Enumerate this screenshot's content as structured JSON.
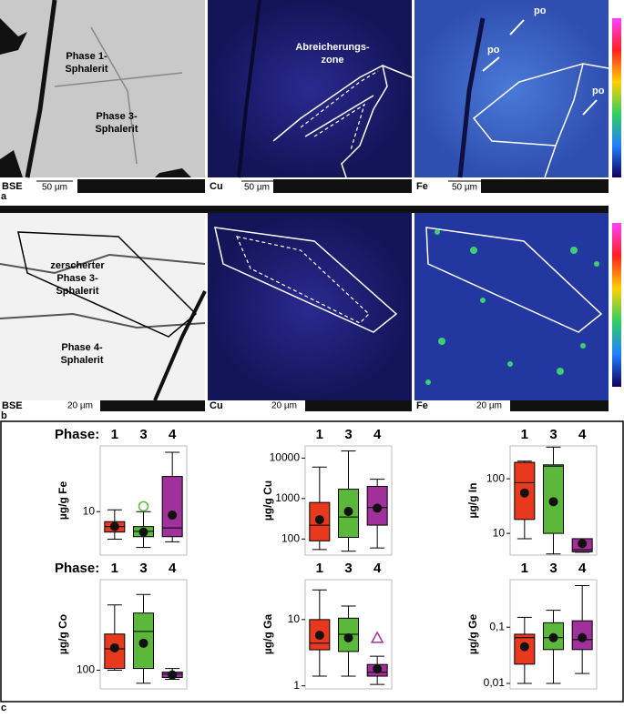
{
  "panels": [
    {
      "letter": "a",
      "images": [
        {
          "channel": "BSE",
          "scale_bar": "50 µm",
          "annotations": [
            "Phase 1-",
            "Sphalerit",
            "Phase 3-",
            "Sphalerit"
          ]
        },
        {
          "channel": "Cu",
          "scale_bar": "50 µm",
          "annotations": [
            "Abreicherungs-",
            "zone"
          ]
        },
        {
          "channel": "Fe",
          "scale_bar": "50 µm",
          "annotations": [
            "po",
            "po",
            "po"
          ]
        }
      ]
    },
    {
      "letter": "b",
      "images": [
        {
          "channel": "BSE",
          "scale_bar": "20 µm",
          "annotations": [
            "zerscherter",
            "Phase 3-",
            "Sphalerit",
            "Phase 4-",
            "Sphalerit"
          ]
        },
        {
          "channel": "Cu",
          "scale_bar": "20 µm"
        },
        {
          "channel": "Fe",
          "scale_bar": "20 µm"
        }
      ]
    },
    {
      "letter": "c"
    }
  ],
  "chart_data": [
    {
      "type": "box",
      "category_label": "Phase:",
      "ylabel": "µg/g Fe",
      "log_scale": true,
      "categories": [
        "1",
        "3",
        "4"
      ],
      "colors": [
        "#e8391e",
        "#5cb83a",
        "#a0309a"
      ],
      "ylim": [
        4,
        40
      ],
      "yticks": [
        10
      ],
      "min": [
        5.6,
        4.7,
        5.3
      ],
      "q1": [
        6.5,
        5.9,
        5.9
      ],
      "median": [
        7.3,
        6.6,
        7.1
      ],
      "q3": [
        8.1,
        7.3,
        21
      ],
      "max": [
        10.4,
        10,
        35
      ],
      "mean": [
        7.3,
        6.5,
        9.3
      ],
      "outliers": [
        null,
        11.2,
        null
      ],
      "outlier_marker": "circle"
    },
    {
      "type": "box",
      "ylabel": "µg/g Cu",
      "log_scale": true,
      "categories": [
        "1",
        "3",
        "4"
      ],
      "colors": [
        "#e8391e",
        "#5cb83a",
        "#a0309a"
      ],
      "ylim": [
        40,
        20000
      ],
      "yticks": [
        100,
        1000,
        10000
      ],
      "min": [
        55,
        50,
        60
      ],
      "q1": [
        90,
        110,
        220
      ],
      "median": [
        220,
        350,
        600
      ],
      "q3": [
        800,
        1700,
        2000
      ],
      "max": [
        6000,
        15000,
        3000
      ],
      "mean": [
        300,
        480,
        580
      ]
    },
    {
      "type": "box",
      "ylabel": "µg/g In",
      "log_scale": true,
      "categories": [
        "1",
        "3",
        "4"
      ],
      "colors": [
        "#e8391e",
        "#5cb83a",
        "#a0309a"
      ],
      "ylim": [
        4,
        400
      ],
      "yticks": [
        10,
        100
      ],
      "min": [
        8,
        4.2,
        4.5
      ],
      "q1": [
        18,
        10,
        4.6
      ],
      "median": [
        85,
        170,
        5
      ],
      "q3": [
        200,
        180,
        8
      ],
      "max": [
        210,
        380,
        8
      ],
      "mean": [
        55,
        38,
        6.5
      ]
    },
    {
      "type": "box",
      "category_label": "Phase:",
      "ylabel": "µg/g Co",
      "log_scale": true,
      "categories": [
        "1",
        "3",
        "4"
      ],
      "colors": [
        "#e8391e",
        "#5cb83a",
        "#a0309a"
      ],
      "ylim": [
        60,
        1200
      ],
      "yticks": [
        100
      ],
      "min": [
        100,
        70,
        78
      ],
      "q1": [
        105,
        105,
        82
      ],
      "median": [
        180,
        290,
        90
      ],
      "q3": [
        270,
        480,
        95
      ],
      "max": [
        600,
        800,
        105
      ],
      "mean": [
        185,
        210,
        88
      ]
    },
    {
      "type": "box",
      "ylabel": "µg/g Ga",
      "log_scale": true,
      "categories": [
        "1",
        "3",
        "4"
      ],
      "colors": [
        "#e8391e",
        "#5cb83a",
        "#a0309a"
      ],
      "ylim": [
        0.9,
        40
      ],
      "yticks": [
        1,
        10
      ],
      "min": [
        1.4,
        1.4,
        1.05
      ],
      "q1": [
        3.5,
        3.3,
        1.4
      ],
      "median": [
        4.4,
        6,
        1.6
      ],
      "q3": [
        10,
        10.5,
        2.1
      ],
      "max": [
        28,
        16,
        2.8
      ],
      "mean": [
        5.8,
        5.3,
        1.8
      ],
      "outliers": [
        null,
        null,
        5.3
      ],
      "outlier_marker": "triangle"
    },
    {
      "type": "box",
      "ylabel": "µg/g Ge",
      "log_scale": true,
      "categories": [
        "1",
        "3",
        "4"
      ],
      "colors": [
        "#e8391e",
        "#5cb83a",
        "#a0309a"
      ],
      "ylim": [
        0.008,
        0.7
      ],
      "yticks": [
        {
          "value": 0.01,
          "label": "0,01"
        },
        {
          "value": 0.1,
          "label": "0,1"
        }
      ],
      "min": [
        0.01,
        0.01,
        0.015
      ],
      "q1": [
        0.022,
        0.04,
        0.04
      ],
      "median": [
        0.065,
        0.065,
        0.06
      ],
      "q3": [
        0.075,
        0.12,
        0.13
      ],
      "max": [
        0.15,
        0.2,
        0.55
      ],
      "mean": [
        0.045,
        0.065,
        0.065
      ]
    }
  ]
}
